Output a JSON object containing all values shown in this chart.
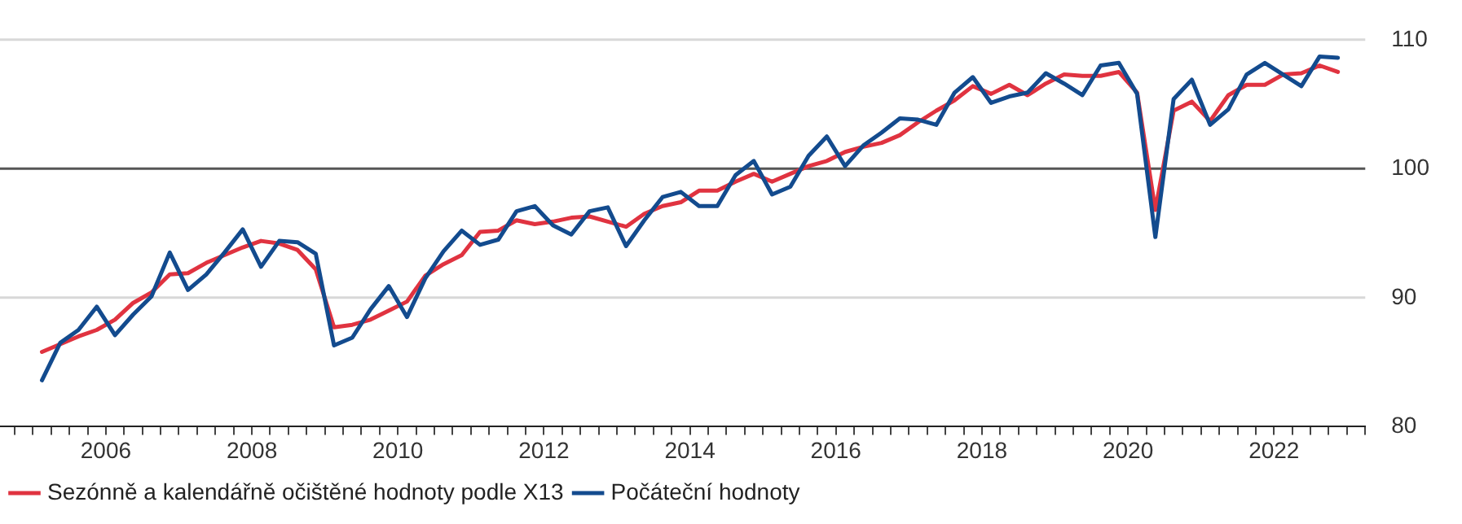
{
  "chart_data": {
    "type": "line",
    "x": [
      2005.125,
      2005.375,
      2005.625,
      2005.875,
      2006.125,
      2006.375,
      2006.625,
      2006.875,
      2007.125,
      2007.375,
      2007.625,
      2007.875,
      2008.125,
      2008.375,
      2008.625,
      2008.875,
      2009.125,
      2009.375,
      2009.625,
      2009.875,
      2010.125,
      2010.375,
      2010.625,
      2010.875,
      2011.125,
      2011.375,
      2011.625,
      2011.875,
      2012.125,
      2012.375,
      2012.625,
      2012.875,
      2013.125,
      2013.375,
      2013.625,
      2013.875,
      2014.125,
      2014.375,
      2014.625,
      2014.875,
      2015.125,
      2015.375,
      2015.625,
      2015.875,
      2016.125,
      2016.375,
      2016.625,
      2016.875,
      2017.125,
      2017.375,
      2017.625,
      2017.875,
      2018.125,
      2018.375,
      2018.625,
      2018.875,
      2019.125,
      2019.375,
      2019.625,
      2019.875,
      2020.125,
      2020.375,
      2020.625,
      2020.875,
      2021.125,
      2021.375,
      2021.625,
      2021.875,
      2022.125,
      2022.375,
      2022.625,
      2022.875
    ],
    "series": [
      {
        "name": "Sezónně a kalendářně očištěné hodnoty podle X13",
        "color": "#e03340",
        "values": [
          85.8,
          86.4,
          87.0,
          87.5,
          88.3,
          89.6,
          90.4,
          91.8,
          91.9,
          92.7,
          93.3,
          93.9,
          94.4,
          94.2,
          93.7,
          92.2,
          87.7,
          87.9,
          88.3,
          89.0,
          89.7,
          91.7,
          92.6,
          93.3,
          95.1,
          95.2,
          96.0,
          95.7,
          95.9,
          96.2,
          96.3,
          95.9,
          95.5,
          96.5,
          97.1,
          97.4,
          98.3,
          98.3,
          99.0,
          99.6,
          99.0,
          99.6,
          100.2,
          100.6,
          101.3,
          101.7,
          102.0,
          102.6,
          103.6,
          104.5,
          105.3,
          106.4,
          105.8,
          106.5,
          105.7,
          106.6,
          107.3,
          107.2,
          107.2,
          107.5,
          105.9,
          96.8,
          104.5,
          105.2,
          103.7,
          105.7,
          106.5,
          106.5,
          107.3,
          107.4,
          108.0,
          107.5
        ]
      },
      {
        "name": "Počáteční hodnoty",
        "color": "#134b8e",
        "values": [
          83.6,
          86.5,
          87.5,
          89.3,
          87.1,
          88.7,
          90.1,
          93.5,
          90.6,
          91.8,
          93.5,
          95.3,
          92.4,
          94.4,
          94.3,
          93.4,
          86.3,
          86.9,
          89.1,
          90.9,
          88.5,
          91.5,
          93.6,
          95.2,
          94.1,
          94.5,
          96.7,
          97.1,
          95.6,
          94.9,
          96.7,
          97.0,
          94.0,
          96.0,
          97.8,
          98.2,
          97.1,
          97.1,
          99.5,
          100.6,
          98.0,
          98.6,
          101.0,
          102.5,
          100.2,
          101.8,
          102.8,
          103.9,
          103.8,
          103.4,
          105.9,
          107.1,
          105.1,
          105.6,
          105.9,
          107.4,
          106.6,
          105.7,
          108.0,
          108.2,
          105.8,
          94.7,
          105.4,
          106.9,
          103.4,
          104.6,
          107.3,
          108.2,
          107.3,
          106.4,
          108.7,
          108.6
        ]
      }
    ],
    "xlim": [
      2004.55,
      2023.25
    ],
    "xticks": [
      {
        "value": 2004.75,
        "label": null
      },
      {
        "value": 2005,
        "label": null
      },
      {
        "value": 2005.25,
        "label": null
      },
      {
        "value": 2005.5,
        "label": null
      },
      {
        "value": 2005.75,
        "label": null
      },
      2006,
      {
        "value": 2006.25,
        "label": null
      },
      {
        "value": 2006.5,
        "label": null
      },
      {
        "value": 2006.75,
        "label": null
      },
      {
        "value": 2007,
        "label": null
      },
      {
        "value": 2007.25,
        "label": null
      },
      {
        "value": 2007.5,
        "label": null
      },
      {
        "value": 2007.75,
        "label": null
      },
      2008,
      {
        "value": 2008.25,
        "label": null
      },
      {
        "value": 2008.5,
        "label": null
      },
      {
        "value": 2008.75,
        "label": null
      },
      {
        "value": 2009,
        "label": null
      },
      {
        "value": 2009.25,
        "label": null
      },
      {
        "value": 2009.5,
        "label": null
      },
      {
        "value": 2009.75,
        "label": null
      },
      2010,
      {
        "value": 2010.25,
        "label": null
      },
      {
        "value": 2010.5,
        "label": null
      },
      {
        "value": 2010.75,
        "label": null
      },
      {
        "value": 2011,
        "label": null
      },
      {
        "value": 2011.25,
        "label": null
      },
      {
        "value": 2011.5,
        "label": null
      },
      {
        "value": 2011.75,
        "label": null
      },
      2012,
      {
        "value": 2012.25,
        "label": null
      },
      {
        "value": 2012.5,
        "label": null
      },
      {
        "value": 2012.75,
        "label": null
      },
      {
        "value": 2013,
        "label": null
      },
      {
        "value": 2013.25,
        "label": null
      },
      {
        "value": 2013.5,
        "label": null
      },
      {
        "value": 2013.75,
        "label": null
      },
      2014,
      {
        "value": 2014.25,
        "label": null
      },
      {
        "value": 2014.5,
        "label": null
      },
      {
        "value": 2014.75,
        "label": null
      },
      {
        "value": 2015,
        "label": null
      },
      {
        "value": 2015.25,
        "label": null
      },
      {
        "value": 2015.5,
        "label": null
      },
      {
        "value": 2015.75,
        "label": null
      },
      2016,
      {
        "value": 2016.25,
        "label": null
      },
      {
        "value": 2016.5,
        "label": null
      },
      {
        "value": 2016.75,
        "label": null
      },
      {
        "value": 2017,
        "label": null
      },
      {
        "value": 2017.25,
        "label": null
      },
      {
        "value": 2017.5,
        "label": null
      },
      {
        "value": 2017.75,
        "label": null
      },
      2018,
      {
        "value": 2018.25,
        "label": null
      },
      {
        "value": 2018.5,
        "label": null
      },
      {
        "value": 2018.75,
        "label": null
      },
      {
        "value": 2019,
        "label": null
      },
      {
        "value": 2019.25,
        "label": null
      },
      {
        "value": 2019.5,
        "label": null
      },
      {
        "value": 2019.75,
        "label": null
      },
      2020,
      {
        "value": 2020.25,
        "label": null
      },
      {
        "value": 2020.5,
        "label": null
      },
      {
        "value": 2020.75,
        "label": null
      },
      {
        "value": 2021,
        "label": null
      },
      {
        "value": 2021.25,
        "label": null
      },
      {
        "value": 2021.5,
        "label": null
      },
      {
        "value": 2021.75,
        "label": null
      },
      2022,
      {
        "value": 2022.25,
        "label": null
      },
      {
        "value": 2022.5,
        "label": null
      },
      {
        "value": 2022.75,
        "label": null
      },
      {
        "value": 2023,
        "label": null
      },
      {
        "value": 2023.25,
        "label": null
      }
    ],
    "ylim": [
      80,
      110
    ],
    "yticks": [
      80,
      90,
      100,
      110
    ],
    "ref_lines": [
      {
        "axis": "y",
        "value": 90,
        "color": "#d8d8d8"
      },
      {
        "axis": "y",
        "value": 100,
        "color": "#555555"
      },
      {
        "axis": "y",
        "value": 110,
        "color": "#d8d8d8"
      }
    ],
    "legend": "bottom left",
    "marker": "none",
    "line_style": "solid"
  }
}
